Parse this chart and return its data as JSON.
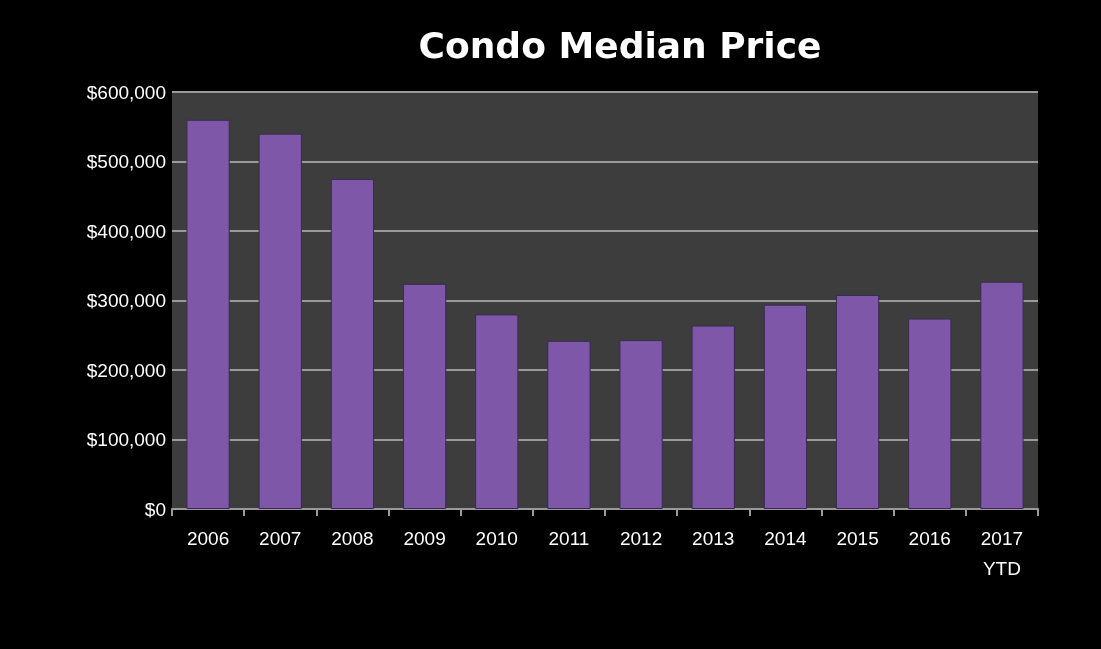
{
  "chart_data": {
    "type": "bar",
    "title": "Condo Median Price",
    "categories": [
      "2006",
      "2007",
      "2008",
      "2009",
      "2010",
      "2011",
      "2012",
      "2013",
      "2014",
      "2015",
      "2016",
      "2017\nYTD"
    ],
    "values": [
      560000,
      540000,
      475000,
      324000,
      280000,
      242000,
      243000,
      264000,
      294000,
      308000,
      274000,
      327000
    ],
    "color": "#7e57a8",
    "ylim": [
      0,
      600000
    ],
    "yticks": [
      {
        "value": 0,
        "label": "$0"
      },
      {
        "value": 100000,
        "label": "$100,000"
      },
      {
        "value": 200000,
        "label": "$200,000"
      },
      {
        "value": 300000,
        "label": "$300,000"
      },
      {
        "value": 400000,
        "label": "$400,000"
      },
      {
        "value": 500000,
        "label": "$500,000"
      },
      {
        "value": 600000,
        "label": "$600,000"
      }
    ],
    "grid": "y"
  }
}
